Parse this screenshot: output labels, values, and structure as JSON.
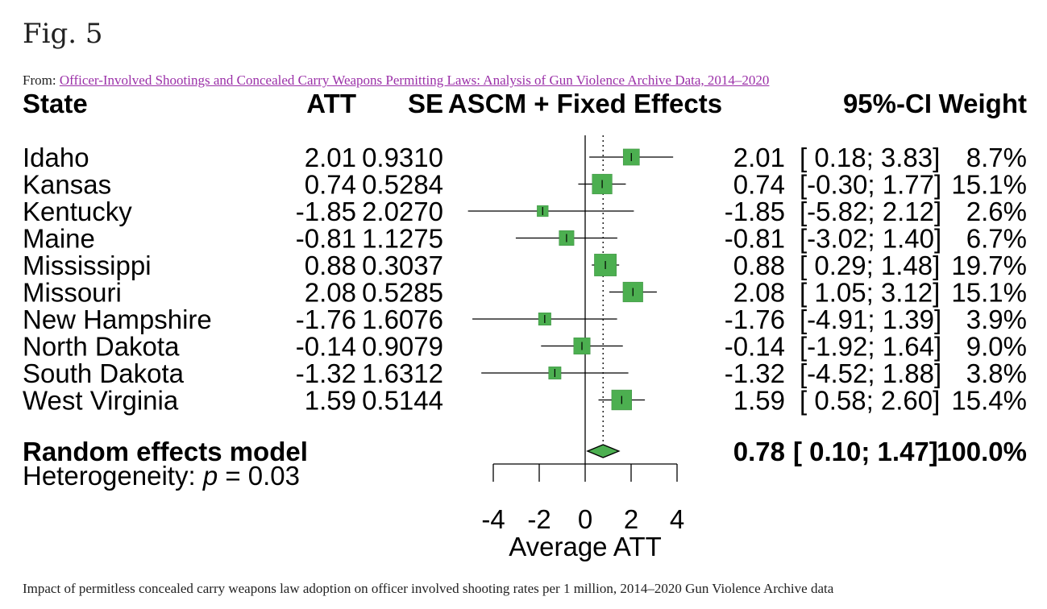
{
  "figure_label": "Fig. 5",
  "from_prefix": "From:",
  "source_link": "Officer-Involved Shootings and Concealed Carry Weapons Permitting Laws: Analysis of Gun Violence Archive Data, 2014–2020",
  "caption": "Impact of permitless concealed carry weapons law adoption on officer involved shooting rates per 1 million, 2014–2020 Gun Violence Archive data",
  "colors": {
    "box": "#4caf50",
    "box_edge": "#3b8e3f",
    "axis": "#000000"
  },
  "chart_data": {
    "type": "forest",
    "headers": {
      "state": "State",
      "att": "ATT",
      "se": "SE",
      "plot": "ASCM + Fixed Effects",
      "ci": "95%-CI",
      "weight": "Weight"
    },
    "rows": [
      {
        "state": "Idaho",
        "att": "2.01",
        "se": "0.9310",
        "est": "2.01",
        "ci_low": "0.18",
        "ci_high": "3.83",
        "weight": "8.7%",
        "att_num": 2.01,
        "low": 0.18,
        "high": 3.83,
        "w": 8.7
      },
      {
        "state": "Kansas",
        "att": "0.74",
        "se": "0.5284",
        "est": "0.74",
        "ci_low": "-0.30",
        "ci_high": "1.77",
        "weight": "15.1%",
        "att_num": 0.74,
        "low": -0.3,
        "high": 1.77,
        "w": 15.1
      },
      {
        "state": "Kentucky",
        "att": "-1.85",
        "se": "2.0270",
        "est": "-1.85",
        "ci_low": "-5.82",
        "ci_high": "2.12",
        "weight": "2.6%",
        "att_num": -1.85,
        "low": -5.82,
        "high": 2.12,
        "w": 2.6
      },
      {
        "state": "Maine",
        "att": "-0.81",
        "se": "1.1275",
        "est": "-0.81",
        "ci_low": "-3.02",
        "ci_high": "1.40",
        "weight": "6.7%",
        "att_num": -0.81,
        "low": -3.02,
        "high": 1.4,
        "w": 6.7
      },
      {
        "state": "Mississippi",
        "att": "0.88",
        "se": "0.3037",
        "est": "0.88",
        "ci_low": "0.29",
        "ci_high": "1.48",
        "weight": "19.7%",
        "att_num": 0.88,
        "low": 0.29,
        "high": 1.48,
        "w": 19.7
      },
      {
        "state": "Missouri",
        "att": "2.08",
        "se": "0.5285",
        "est": "2.08",
        "ci_low": "1.05",
        "ci_high": "3.12",
        "weight": "15.1%",
        "att_num": 2.08,
        "low": 1.05,
        "high": 3.12,
        "w": 15.1
      },
      {
        "state": "New Hampshire",
        "att": "-1.76",
        "se": "1.6076",
        "est": "-1.76",
        "ci_low": "-4.91",
        "ci_high": "1.39",
        "weight": "3.9%",
        "att_num": -1.76,
        "low": -4.91,
        "high": 1.39,
        "w": 3.9
      },
      {
        "state": "North Dakota",
        "att": "-0.14",
        "se": "0.9079",
        "est": "-0.14",
        "ci_low": "-1.92",
        "ci_high": "1.64",
        "weight": "9.0%",
        "att_num": -0.14,
        "low": -1.92,
        "high": 1.64,
        "w": 9.0
      },
      {
        "state": "South Dakota",
        "att": "-1.32",
        "se": "1.6312",
        "est": "-1.32",
        "ci_low": "-4.52",
        "ci_high": "1.88",
        "weight": "3.8%",
        "att_num": -1.32,
        "low": -4.52,
        "high": 1.88,
        "w": 3.8
      },
      {
        "state": "West Virginia",
        "att": "1.59",
        "se": "0.5144",
        "est": "1.59",
        "ci_low": "0.58",
        "ci_high": "2.60",
        "weight": "15.4%",
        "att_num": 1.59,
        "low": 0.58,
        "high": 2.6,
        "w": 15.4
      }
    ],
    "summary": {
      "label": "Random effects model",
      "est": "0.78",
      "ci_low": "0.10",
      "ci_high": "1.47",
      "weight": "100.0%",
      "est_num": 0.78,
      "low": 0.1,
      "high": 1.47
    },
    "heterogeneity": {
      "prefix": "Heterogeneity: ",
      "p_symbol": "p",
      "suffix": " = 0.03"
    },
    "x_ticks": [
      -4,
      -2,
      0,
      2,
      4
    ],
    "x_tick_labels": [
      "-4",
      "-2",
      "0",
      "2",
      "4"
    ],
    "xlim": [
      -4,
      4
    ],
    "xlabel": "Average ATT",
    "reference_line": 0
  }
}
